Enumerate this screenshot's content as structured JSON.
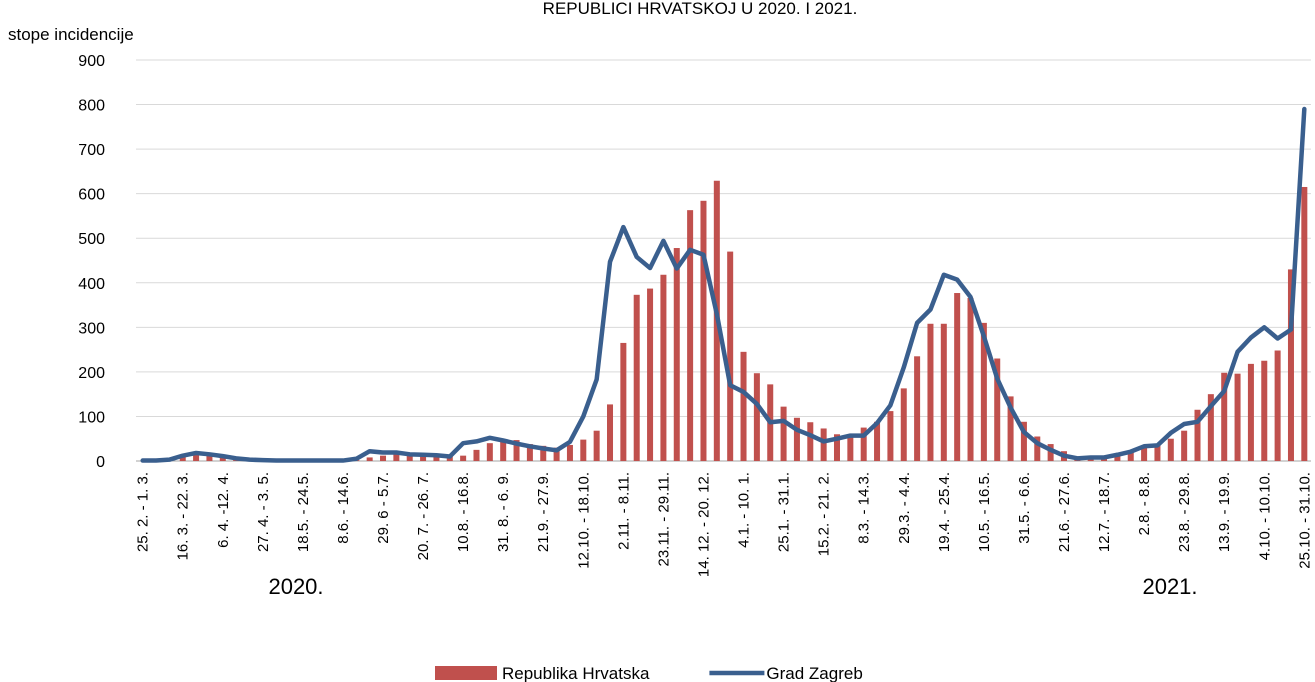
{
  "chart_data": {
    "type": "bar_line",
    "title": "REPUBLICI HRVATSKOJ U 2020. I 2021.",
    "y_label": "stope incidencije",
    "annotations": [
      "2020.",
      "2021."
    ],
    "categories": [
      "25. 2. - 1. 3.",
      null,
      null,
      "16. 3. - 22. 3.",
      null,
      null,
      "6. 4. -12. 4.",
      null,
      null,
      "27. 4. - 3. 5.",
      null,
      null,
      "18.5. - 24.5.",
      null,
      null,
      "8.6. - 14.6.",
      null,
      null,
      "29. 6 - 5.7.",
      null,
      null,
      "20. 7. - 26. 7.",
      null,
      null,
      "10.8. - 16.8.",
      null,
      null,
      "31. 8. - 6. 9.",
      null,
      null,
      "21.9. - 27.9.",
      null,
      null,
      "12.10. - 18.10.",
      null,
      null,
      "2.11. - 8.11.",
      null,
      null,
      "23.11. - 29.11.",
      null,
      null,
      "14. 12. - 20. 12.",
      null,
      null,
      "4.1. - 10. 1.",
      null,
      null,
      "25.1. - 31.1.",
      null,
      null,
      "15.2. - 21. 2.",
      null,
      null,
      "8.3. - 14.3.",
      null,
      null,
      "29.3. - 4.4.",
      null,
      null,
      "19.4. - 25.4.",
      null,
      null,
      "10.5. - 16.5.",
      null,
      null,
      "31.5. - 6.6.",
      null,
      null,
      "21.6. - 27.6.",
      null,
      null,
      "12.7. - 18.7.",
      null,
      null,
      "2.8. - 8.8.",
      null,
      null,
      "23.8. - 29.8.",
      null,
      null,
      "13.9. - 19.9.",
      null,
      null,
      "4.10. - 10.10.",
      null,
      null,
      "25.10. - 31.10."
    ],
    "series": [
      {
        "name": "Republika Hrvatska",
        "type": "bar",
        "color": "#c0504d",
        "values": [
          0,
          1,
          3,
          10,
          14,
          13,
          10,
          5,
          2,
          1,
          1,
          1,
          1,
          1,
          1,
          1,
          2,
          8,
          12,
          15,
          15,
          14,
          11,
          10,
          12,
          25,
          40,
          48,
          47,
          38,
          34,
          30,
          36,
          48,
          68,
          127,
          265,
          373,
          387,
          418,
          478,
          563,
          584,
          629,
          470,
          245,
          197,
          172,
          122,
          97,
          87,
          73,
          60,
          57,
          75,
          88,
          112,
          163,
          235,
          308,
          308,
          377,
          366,
          310,
          230,
          145,
          88,
          55,
          38,
          22,
          7,
          8,
          10,
          15,
          22,
          30,
          35,
          50,
          68,
          115,
          150,
          198,
          196,
          218,
          225,
          248,
          430,
          615
        ]
      },
      {
        "name": "Grad Zagreb",
        "type": "line",
        "color": "#3a5f8e",
        "values": [
          1,
          1,
          3,
          12,
          18,
          15,
          11,
          6,
          3,
          2,
          1,
          1,
          1,
          1,
          1,
          1,
          5,
          22,
          19,
          19,
          15,
          14,
          13,
          10,
          40,
          44,
          52,
          46,
          39,
          33,
          28,
          24,
          43,
          100,
          183,
          447,
          525,
          458,
          433,
          494,
          432,
          474,
          463,
          330,
          170,
          155,
          128,
          87,
          90,
          70,
          58,
          44,
          50,
          57,
          57,
          85,
          125,
          210,
          310,
          340,
          418,
          407,
          368,
          280,
          185,
          120,
          65,
          40,
          25,
          12,
          6,
          8,
          8,
          14,
          21,
          33,
          35,
          63,
          83,
          88,
          123,
          157,
          245,
          277,
          300,
          275,
          295,
          790
        ]
      }
    ],
    "ylim": [
      0,
      900
    ],
    "yticks": [
      0,
      100,
      200,
      300,
      400,
      500,
      600,
      700,
      800,
      900
    ],
    "grid": true,
    "legend": "bottom"
  }
}
